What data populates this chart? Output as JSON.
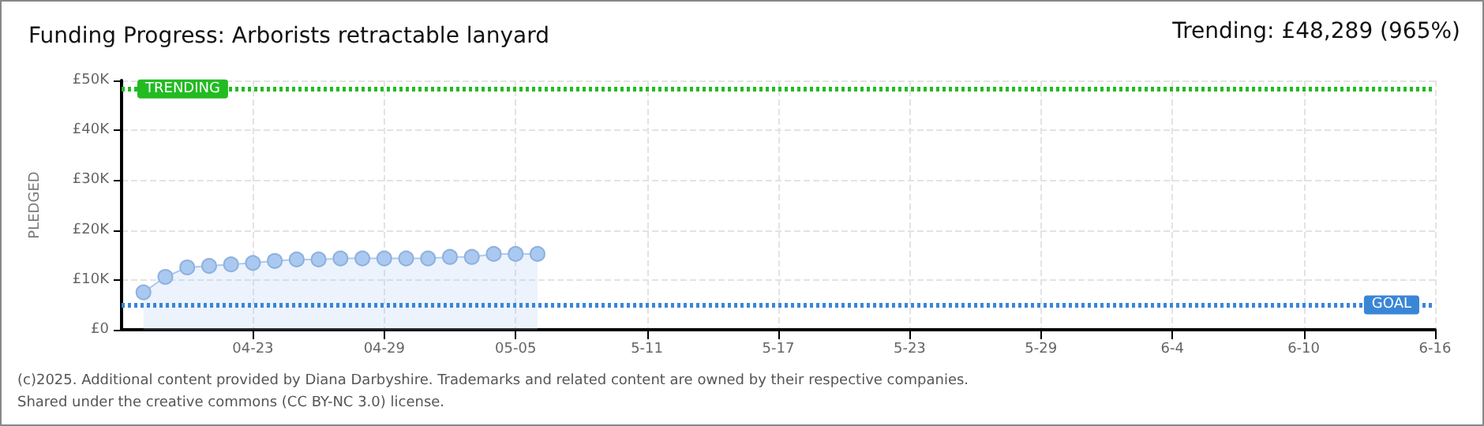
{
  "chart_data": {
    "type": "area",
    "title": "Funding Progress: Arborists retractable lanyard",
    "ylabel": "PLEDGED",
    "annotations": [
      "Trending: £48,289 (965%)",
      "(c)2025. Additional content provided by Diana Darbyshire. Trademarks and related content are owned by their respective companies.",
      "Shared under the creative commons (CC BY-NC 3.0) license."
    ],
    "x": [
      "--04-18",
      "--04-19",
      "--04-20",
      "--04-21",
      "--04-22",
      "--04-23",
      "--04-24",
      "--04-25",
      "--04-26",
      "--04-27",
      "--04-28",
      "--04-29",
      "--04-30",
      "--05-01",
      "--05-02",
      "--05-03",
      "--05-04",
      "--05-05",
      "--05-06"
    ],
    "series": [
      {
        "color": "#a9c9f0",
        "values": [
          7500,
          10600,
          12500,
          12800,
          13100,
          13400,
          13800,
          14100,
          14100,
          14300,
          14300,
          14300,
          14300,
          14300,
          14600,
          14600,
          15200,
          15200,
          15200
        ]
      }
    ],
    "xlim": [
      "--04-17",
      "--06-16"
    ],
    "xticks": [
      {
        "value": "--04-23",
        "label": "04-23"
      },
      {
        "value": "--04-29",
        "label": "04-29"
      },
      {
        "value": "--05-05",
        "label": "05-05"
      },
      {
        "value": "--05-11",
        "label": "5-11"
      },
      {
        "value": "--05-17",
        "label": "5-17"
      },
      {
        "value": "--05-23",
        "label": "5-23"
      },
      {
        "value": "--05-29",
        "label": "5-29"
      },
      {
        "value": "--06-04",
        "label": "6-4"
      },
      {
        "value": "--06-10",
        "label": "6-10"
      },
      {
        "value": "--06-16",
        "label": "6-16"
      }
    ],
    "ylim": [
      0,
      50000
    ],
    "yticks": [
      {
        "value": 0,
        "label": "£0"
      },
      {
        "value": 10000,
        "label": "£10K"
      },
      {
        "value": 20000,
        "label": "£20K"
      },
      {
        "value": 30000,
        "label": "£30K"
      },
      {
        "value": 40000,
        "label": "£40K"
      },
      {
        "value": 50000,
        "label": "£50K"
      }
    ],
    "ref_lines": [
      {
        "axis": "y",
        "value": 48289,
        "label": "TRENDING",
        "color": "#22bb22",
        "line_style": "dotted"
      },
      {
        "axis": "y",
        "value": 5000,
        "label": "GOAL",
        "color": "#3a86d6",
        "line_style": "dotted"
      }
    ],
    "grid": true,
    "marker": "circle"
  }
}
